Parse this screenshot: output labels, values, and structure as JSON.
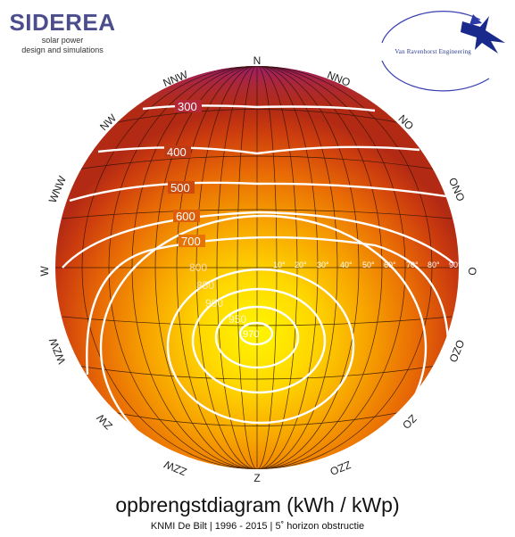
{
  "brand": {
    "name": "SIDEREA",
    "tagline_1": "solar power",
    "tagline_2": "design and simulations"
  },
  "logo": {
    "text": "Van Ravenhorst Engineering"
  },
  "compass": {
    "N": "N",
    "NNO": "NNO",
    "NO": "NO",
    "ONO": "ONO",
    "O": "O",
    "OZO": "OZO",
    "ZO": "ZO",
    "ZZO": "ZZO",
    "Z": "Z",
    "ZZW": "ZZW",
    "ZW": "ZW",
    "WZW": "WZW",
    "W": "W",
    "WNW": "WNW",
    "NW": "NW",
    "NNW": "NNW"
  },
  "elevation_labels": [
    "10°",
    "20°",
    "30°",
    "40°",
    "50°",
    "60°",
    "70°",
    "80°",
    "90°"
  ],
  "contours": [
    {
      "value": "300",
      "color": "#ffffff"
    },
    {
      "value": "400",
      "color": "#ffffff"
    },
    {
      "value": "500",
      "color": "#ffffff"
    },
    {
      "value": "600",
      "color": "#ffffff"
    },
    {
      "value": "700",
      "color": "#ffffff"
    },
    {
      "value": "800",
      "color": "#ffffff"
    },
    {
      "value": "850",
      "color": "#ffffff"
    },
    {
      "value": "900",
      "color": "#ffffff"
    },
    {
      "value": "950",
      "color": "#ffffff"
    },
    {
      "value": "970",
      "color": "#ffffff"
    }
  ],
  "colors": {
    "center": "#fff200",
    "mid": "#f08a00",
    "edge": "#b62a12",
    "top": "#a0205a",
    "brand": "#4b4d8c"
  },
  "caption": {
    "title": "opbrengstdiagram (kWh / kWp)",
    "subtitle": "KNMI De Bilt | 1996 - 2015 | 5˚ horizon obstructie"
  }
}
